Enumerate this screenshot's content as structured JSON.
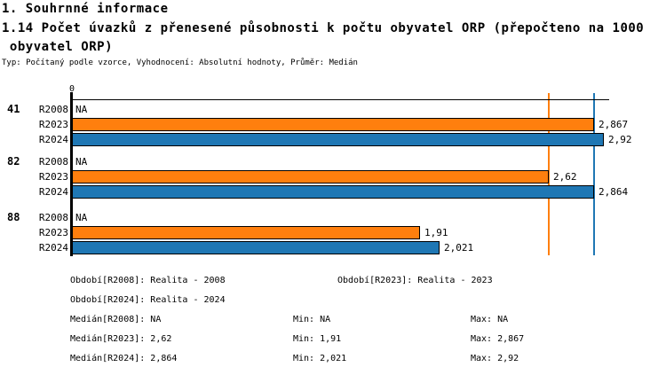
{
  "header": {
    "section_title": "1. Souhrnné informace",
    "indicator_title_line1": "1.14 Počet úvazků z přenesené působnosti k počtu obyvatel ORP (přepočteno na 1000",
    "indicator_title_line2": " obyvatel ORP)",
    "meta": "Typ: Počítaný podle vzorce, Vyhodnocení: Absolutní hodnoty, Průměr: Medián"
  },
  "chart_data": {
    "type": "bar",
    "orientation": "horizontal",
    "title": "1.14 Počet úvazků z přenesené působnosti k počtu obyvatel ORP (přepočteno na 1000 obyvatel ORP)",
    "axis": {
      "origin_label": "0",
      "xlim": [
        0,
        2.95
      ],
      "grid": false
    },
    "value_format": "czech decimal comma",
    "colors": {
      "R2023": "#FF7F0E",
      "R2024": "#1F77B4",
      "axis": "#000000"
    },
    "groups": [
      {
        "label": "41",
        "rows": [
          {
            "period": "R2008",
            "value": null,
            "label": "NA",
            "color": null
          },
          {
            "period": "R2023",
            "value": 2.867,
            "label": "2,867",
            "color": "#FF7F0E"
          },
          {
            "period": "R2024",
            "value": 2.92,
            "label": "2,92",
            "color": "#1F77B4"
          }
        ]
      },
      {
        "label": "82",
        "rows": [
          {
            "period": "R2008",
            "value": null,
            "label": "NA",
            "color": null
          },
          {
            "period": "R2023",
            "value": 2.62,
            "label": "2,62",
            "color": "#FF7F0E"
          },
          {
            "period": "R2024",
            "value": 2.864,
            "label": "2,864",
            "color": "#1F77B4"
          }
        ]
      },
      {
        "label": "88",
        "rows": [
          {
            "period": "R2008",
            "value": null,
            "label": "NA",
            "color": null
          },
          {
            "period": "R2023",
            "value": 1.91,
            "label": "1,91",
            "color": "#FF7F0E"
          },
          {
            "period": "R2024",
            "value": 2.021,
            "label": "2,021",
            "color": "#1F77B4"
          }
        ]
      }
    ],
    "reference_lines": [
      {
        "name": "median-R2023",
        "value": 2.62,
        "color": "#FF7F0E"
      },
      {
        "name": "median-R2024",
        "value": 2.864,
        "color": "#1F77B4"
      }
    ]
  },
  "legend": {
    "period_rows": [
      [
        "Období[R2008]: Realita - 2008",
        "Období[R2023]: Realita - 2023"
      ],
      [
        "Období[R2024]: Realita - 2024"
      ]
    ],
    "stat_rows": [
      [
        "Medián[R2008]: NA",
        "Min: NA",
        "Max: NA"
      ],
      [
        "Medián[R2023]: 2,62",
        "Min: 1,91",
        "Max: 2,867"
      ],
      [
        "Medián[R2024]: 2,864",
        "Min: 2,021",
        "Max: 2,92"
      ]
    ]
  }
}
